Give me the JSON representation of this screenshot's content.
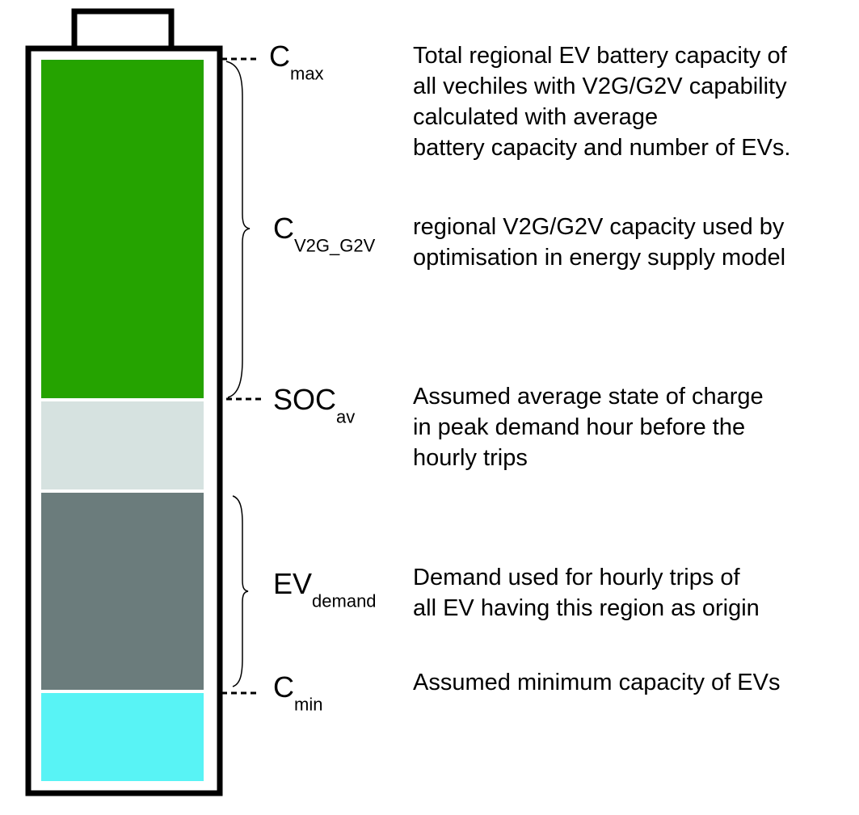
{
  "colors": {
    "cap": "#25a300",
    "soc": "#d6e2e0",
    "demand": "#6b7c7c",
    "min": "#58f3f5",
    "outline": "#000000"
  },
  "levels": [
    {
      "main": "C",
      "sub": "max",
      "desc": [
        "Total regional EV battery capacity of",
        "all vechiles with V2G/G2V capability",
        "calculated with average",
        "battery capacity and number of EVs."
      ]
    },
    {
      "main": "C",
      "sub": "V2G_G2V",
      "desc": [
        "regional V2G/G2V capacity used by",
        "optimisation in energy supply model"
      ]
    },
    {
      "main": "SOC",
      "sub": "av",
      "desc": [
        "Assumed average state of charge",
        "in peak demand hour before the",
        "hourly trips"
      ]
    },
    {
      "main": "EV",
      "sub": "demand",
      "desc": [
        "Demand used for hourly trips of",
        "all EV having this region as origin"
      ]
    },
    {
      "main": "C",
      "sub": "min",
      "desc": [
        "Assumed minimum capacity of EVs"
      ]
    }
  ]
}
